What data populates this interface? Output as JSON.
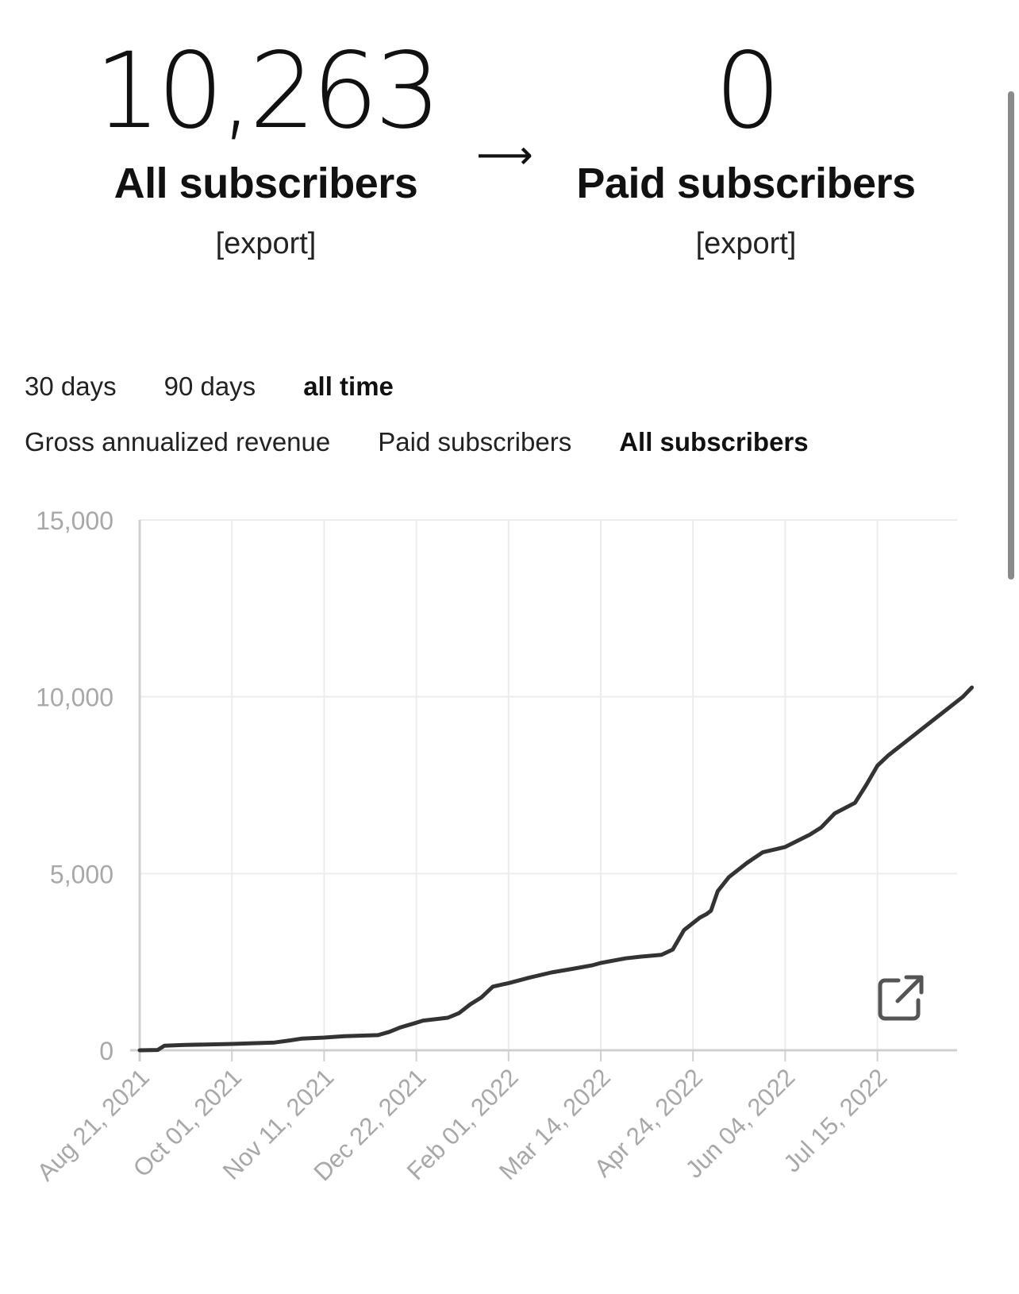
{
  "stats": {
    "all": {
      "value": "10,263",
      "label": "All subscribers",
      "export": "[export]"
    },
    "arrow": "⟶",
    "paid": {
      "value": "0",
      "label": "Paid subscribers",
      "export": "[export]"
    }
  },
  "range_tabs": [
    {
      "label": "30 days",
      "active": false
    },
    {
      "label": "90 days",
      "active": false
    },
    {
      "label": "all time",
      "active": true
    }
  ],
  "metric_tabs": [
    {
      "label": "Gross annualized revenue",
      "active": false
    },
    {
      "label": "Paid subscribers",
      "active": false
    },
    {
      "label": "All subscribers",
      "active": true
    }
  ],
  "icons": {
    "open_external": "external-link-icon"
  },
  "colors": {
    "line": "#333333",
    "grid": "#ececec",
    "axis": "#d0d0d0",
    "tick_text": "#a8a8a8"
  },
  "chart_data": {
    "type": "line",
    "title": "",
    "xlabel": "",
    "ylabel": "",
    "ylim": [
      0,
      15000
    ],
    "yticks": [
      0,
      5000,
      10000,
      15000
    ],
    "ytick_labels": [
      "0",
      "5,000",
      "10,000",
      "15,000"
    ],
    "xticks": [
      "2021-08-21",
      "2021-10-01",
      "2021-11-11",
      "2021-12-22",
      "2022-02-01",
      "2022-03-14",
      "2022-04-24",
      "2022-06-04",
      "2022-07-15"
    ],
    "xtick_labels": [
      "Aug 21, 2021",
      "Oct 01, 2021",
      "Nov 11, 2021",
      "Dec 22, 2021",
      "Feb 01, 2022",
      "Mar 14, 2022",
      "Apr 24, 2022",
      "Jun 04, 2022",
      "Jul 15, 2022"
    ],
    "grid": true,
    "series": [
      {
        "name": "",
        "x": [
          "2021-08-21",
          "2021-08-29",
          "2021-09-01",
          "2021-09-10",
          "2021-10-01",
          "2021-10-20",
          "2021-10-27",
          "2021-11-01",
          "2021-11-11",
          "2021-11-20",
          "2021-12-05",
          "2021-12-10",
          "2021-12-15",
          "2021-12-22",
          "2021-12-25",
          "2022-01-05",
          "2022-01-10",
          "2022-01-15",
          "2022-01-20",
          "2022-01-25",
          "2022-02-01",
          "2022-02-10",
          "2022-02-20",
          "2022-03-01",
          "2022-03-10",
          "2022-03-14",
          "2022-03-25",
          "2022-04-01",
          "2022-04-10",
          "2022-04-15",
          "2022-04-20",
          "2022-04-27",
          "2022-04-30",
          "2022-05-02",
          "2022-05-05",
          "2022-05-10",
          "2022-05-18",
          "2022-05-25",
          "2022-06-04",
          "2022-06-15",
          "2022-06-20",
          "2022-06-26",
          "2022-07-05",
          "2022-07-10",
          "2022-07-15",
          "2022-07-20",
          "2022-07-26",
          "2022-08-02",
          "2022-08-10",
          "2022-08-22",
          "2022-08-26"
        ],
        "values": [
          0,
          10,
          130,
          150,
          180,
          220,
          280,
          330,
          360,
          400,
          430,
          520,
          650,
          780,
          840,
          920,
          1050,
          1300,
          1500,
          1800,
          1900,
          2050,
          2200,
          2300,
          2400,
          2470,
          2600,
          2650,
          2700,
          2850,
          3400,
          3750,
          3850,
          3950,
          4500,
          4900,
          5300,
          5600,
          5750,
          6100,
          6300,
          6700,
          7000,
          7500,
          8050,
          8350,
          8650,
          9000,
          9400,
          10000,
          10263
        ]
      }
    ]
  }
}
